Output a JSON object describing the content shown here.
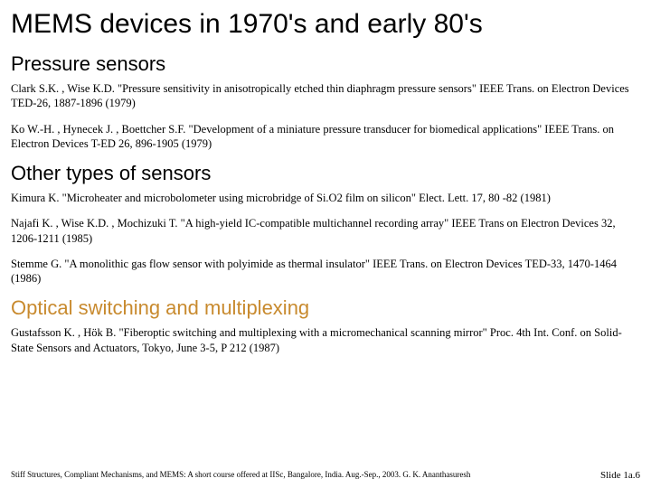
{
  "title": "MEMS devices in 1970's and early 80's",
  "sections": {
    "s1": {
      "heading": "Pressure sensors",
      "r1": "Clark S.K. , Wise K.D. \"Pressure sensitivity in anisotropically etched thin diaphragm pressure sensors\" IEEE Trans. on Electron Devices TED-26, 1887-1896 (1979)",
      "r2": "Ko W.-H. , Hynecek J. , Boettcher S.F. \"Development of a miniature pressure transducer for biomedical applications\" IEEE Trans. on Electron Devices T-ED 26, 896-1905 (1979)"
    },
    "s2": {
      "heading": "Other types of sensors",
      "r1": "Kimura K. \"Microheater and microbolometer using microbridge of Si.O2 film on silicon\" Elect. Lett. 17, 80 -82 (1981)",
      "r2": "Najafi K. , Wise K.D. , Mochizuki T. \"A high-yield IC-compatible multichannel recording array\" IEEE Trans on Electron Devices 32, 1206-1211 (1985)",
      "r3": "Stemme G. \"A monolithic gas flow sensor with polyimide as thermal insulator\" IEEE Trans. on Electron Devices TED-33, 1470-1464 (1986)"
    },
    "s3": {
      "heading": "Optical switching and multiplexing",
      "r1": "Gustafsson K. , Hök B. \"Fiberoptic switching and multiplexing with a micromechanical scanning mirror\" Proc. 4th Int. Conf. on Solid-State Sensors and Actuators, Tokyo, June 3-5, P 212 (1987)"
    }
  },
  "footer": {
    "left": "Stiff Structures, Compliant Mechanisms, and MEMS: A short course offered at IISc, Bangalore, India. Aug.-Sep., 2003. G. K. Ananthasuresh",
    "right": "Slide 1a.6"
  },
  "colors": {
    "text": "#000000",
    "accent": "#c88a2e",
    "background": "#ffffff"
  },
  "typography": {
    "title_fontsize": 30,
    "section_fontsize": 22,
    "body_fontsize": 12.5,
    "footer_fontsize": 9,
    "heading_family": "Comic Sans MS",
    "body_family": "Georgia"
  }
}
